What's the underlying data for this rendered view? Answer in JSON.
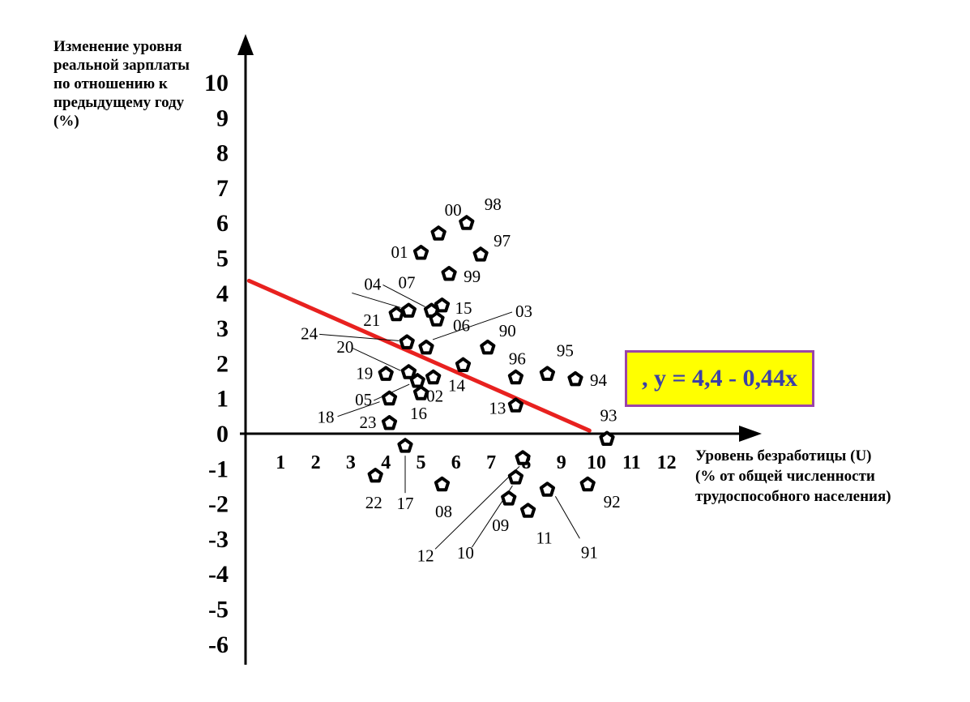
{
  "chart_data": {
    "type": "scatter",
    "title": "",
    "ylabel": "Изменение уровня реальной зарплаты по отношению к предыдущему году (%)",
    "xlabel_lines": [
      "Уровень безработицы (U)",
      "(% от общей численности",
      "трудоспособного населения)"
    ],
    "xlim": [
      0,
      12.5
    ],
    "ylim": [
      -6,
      10
    ],
    "x_ticks": [
      "1",
      "2",
      "3",
      "4",
      "5",
      "6",
      "7",
      "8",
      "9",
      "10",
      "11",
      "12"
    ],
    "y_ticks": [
      "10",
      "9",
      "8",
      "7",
      "6",
      "5",
      "4",
      "3",
      "2",
      "1",
      "0",
      "-1",
      "-2",
      "-3",
      "-4",
      "-5",
      "-6"
    ],
    "grid": false,
    "marker": "pentagon",
    "points": [
      {
        "label": "00",
        "x": 5.5,
        "y": 5.7
      },
      {
        "label": "98",
        "x": 6.3,
        "y": 6.0
      },
      {
        "label": "97",
        "x": 6.7,
        "y": 5.1
      },
      {
        "label": "01",
        "x": 5.0,
        "y": 5.15
      },
      {
        "label": "99",
        "x": 5.8,
        "y": 4.55
      },
      {
        "label": "07",
        "x": 5.3,
        "y": 3.5
      },
      {
        "label": "15",
        "x": 5.6,
        "y": 3.65
      },
      {
        "label": "06",
        "x": 5.45,
        "y": 3.25
      },
      {
        "label": "04",
        "x": 4.65,
        "y": 3.5
      },
      {
        "label": "21",
        "x": 4.3,
        "y": 3.4
      },
      {
        "label": "03",
        "x": 5.15,
        "y": 2.45
      },
      {
        "label": "24",
        "x": 4.6,
        "y": 2.6
      },
      {
        "label": "90",
        "x": 6.9,
        "y": 2.45
      },
      {
        "label": "20",
        "x": 4.65,
        "y": 1.75
      },
      {
        "label": "19",
        "x": 4.0,
        "y": 1.7
      },
      {
        "label": "14",
        "x": 6.2,
        "y": 1.95
      },
      {
        "label": "96",
        "x": 7.7,
        "y": 1.6
      },
      {
        "label": "95",
        "x": 8.6,
        "y": 1.7
      },
      {
        "label": "94",
        "x": 9.4,
        "y": 1.55
      },
      {
        "label": "02",
        "x": 5.35,
        "y": 1.6
      },
      {
        "label": "05",
        "x": 4.9,
        "y": 1.5
      },
      {
        "label": "16",
        "x": 5.0,
        "y": 1.15
      },
      {
        "label": "18",
        "x": 4.1,
        "y": 1.0
      },
      {
        "label": "13",
        "x": 7.7,
        "y": 0.8
      },
      {
        "label": "23",
        "x": 4.1,
        "y": 0.3
      },
      {
        "label": "93",
        "x": 10.3,
        "y": -0.15
      },
      {
        "label": "17",
        "x": 4.55,
        "y": -0.35
      },
      {
        "label": "22",
        "x": 3.7,
        "y": -1.2
      },
      {
        "label": "12",
        "x": 7.9,
        "y": -0.7
      },
      {
        "label": "08",
        "x": 5.6,
        "y": -1.45
      },
      {
        "label": "10",
        "x": 7.7,
        "y": -1.25
      },
      {
        "label": "09",
        "x": 7.5,
        "y": -1.85
      },
      {
        "label": "11",
        "x": 8.05,
        "y": -2.2
      },
      {
        "label": "91",
        "x": 8.6,
        "y": -1.6
      },
      {
        "label": "92",
        "x": 9.75,
        "y": -1.45
      }
    ],
    "trend_line": {
      "intercept": 4.4,
      "slope": -0.44,
      "x_range": [
        0.1,
        9.8
      ],
      "color": "#e8211f"
    },
    "equation_label": ", y = 4,4 - 0,44x"
  }
}
